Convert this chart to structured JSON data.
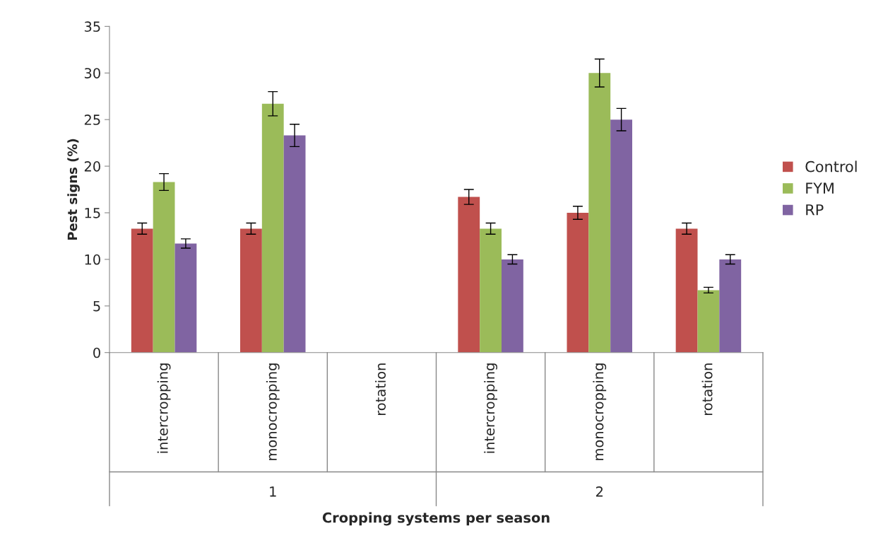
{
  "chart_data": {
    "type": "bar",
    "xlabel": "Cropping systems per season",
    "ylabel": "Pest signs (%)",
    "categories": [
      "intercropping",
      "monocropping",
      "rotation",
      "intercropping",
      "monocropping",
      "rotation"
    ],
    "series": [
      {
        "name": "Control",
        "color": "#c0504d",
        "values": [
          13.3,
          13.3,
          null,
          16.7,
          15,
          13.3
        ],
        "errors": [
          0.6,
          0.6,
          null,
          0.8,
          0.7,
          0.6
        ]
      },
      {
        "name": "FYM",
        "color": "#9bbb59",
        "values": [
          18.3,
          26.7,
          null,
          13.3,
          30,
          6.7
        ],
        "errors": [
          0.9,
          1.3,
          null,
          0.6,
          1.5,
          0.3
        ]
      },
      {
        "name": "RP",
        "color": "#8064a2",
        "values": [
          11.7,
          23.3,
          null,
          10,
          25,
          10
        ],
        "errors": [
          0.5,
          1.2,
          null,
          0.5,
          1.2,
          0.5
        ]
      }
    ],
    "annotations": [
      "1",
      "2"
    ],
    "ylim": [
      0,
      35
    ],
    "yticks": [
      0,
      5,
      10,
      15,
      20,
      25,
      30,
      35
    ],
    "grid": false,
    "legend": "right"
  }
}
